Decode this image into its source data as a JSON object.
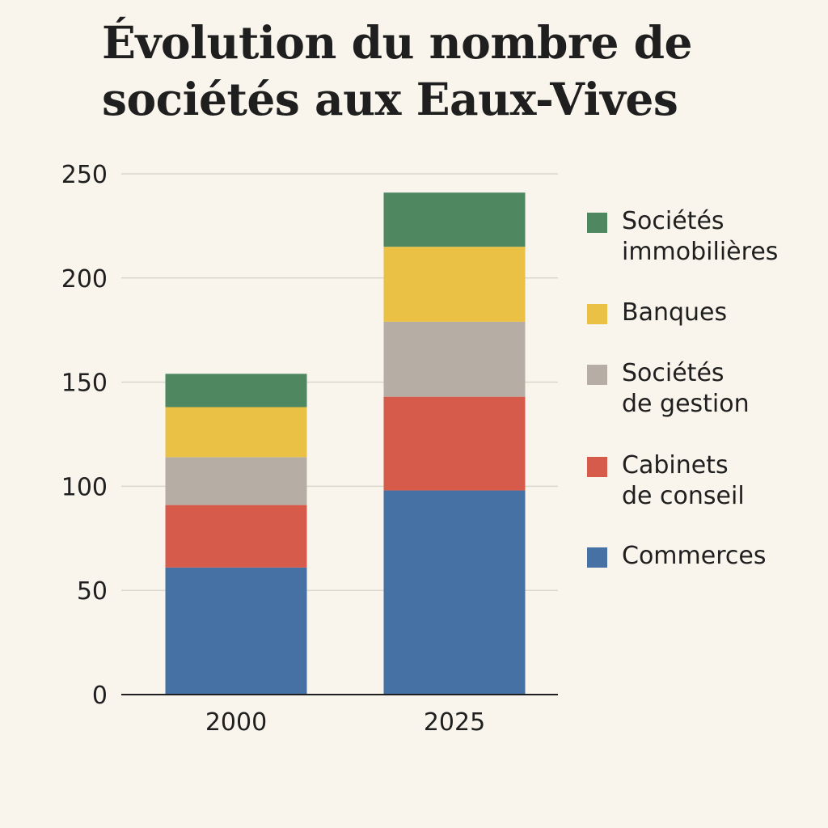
{
  "chart_data": {
    "type": "bar",
    "stacked": true,
    "title": "Évolution du nombre de sociétés aux Eaux-Vives",
    "categories": [
      "2000",
      "2025"
    ],
    "series": [
      {
        "name": "Commerces",
        "color": "#4671a4",
        "values": [
          61,
          98
        ]
      },
      {
        "name": "Cabinets\nde conseil",
        "color": "#d75b4a",
        "values": [
          30,
          45
        ]
      },
      {
        "name": "Sociétés\nde gestion",
        "color": "#b6aea5",
        "values": [
          23,
          36
        ]
      },
      {
        "name": "Banques",
        "color": "#eac145",
        "values": [
          24,
          36
        ]
      },
      {
        "name": "Sociétés\nimmobilières",
        "color": "#4e8760",
        "values": [
          16,
          26
        ]
      }
    ],
    "legend_order": [
      4,
      3,
      2,
      1,
      0
    ],
    "yticks": [
      "0",
      "50",
      "100",
      "150",
      "200",
      "250"
    ],
    "ylim": [
      0,
      250
    ],
    "xlabel": "",
    "ylabel": "",
    "grid": true,
    "legend_position": "right"
  }
}
